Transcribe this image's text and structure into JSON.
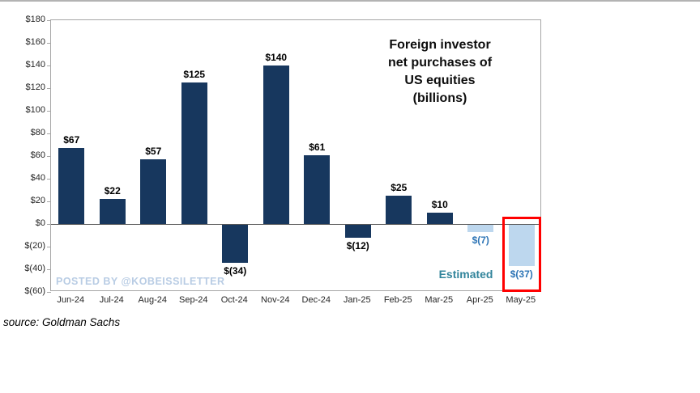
{
  "title_lines": [
    "Foreign investor",
    "net purchases of",
    "US equities",
    "(billions)"
  ],
  "watermark": "POSTED BY @KOBEISSILETTER",
  "estimated_label": "Estimated",
  "source": "source: Goldman Sachs",
  "chart_data": {
    "type": "bar",
    "title": "Foreign investor net purchases of US equities (billions)",
    "xlabel": "",
    "ylabel": "",
    "categories": [
      "Jun-24",
      "Jul-24",
      "Aug-24",
      "Sep-24",
      "Oct-24",
      "Nov-24",
      "Dec-24",
      "Jan-25",
      "Feb-25",
      "Mar-25",
      "Apr-25",
      "May-25"
    ],
    "values": [
      67,
      22,
      57,
      125,
      -34,
      140,
      61,
      -12,
      25,
      10,
      -7,
      -37
    ],
    "labels": [
      "$67",
      "$22",
      "$57",
      "$125",
      "$(34)",
      "$140",
      "$61",
      "$(12)",
      "$25",
      "$10",
      "$(7)",
      "$(37)"
    ],
    "estimated_indices": [
      10,
      11
    ],
    "highlighted_index": 11,
    "ylim": [
      -60,
      180
    ],
    "ytick_step": 20,
    "ytick_labels": [
      "$180",
      "$160",
      "$140",
      "$120",
      "$100",
      "$80",
      "$60",
      "$40",
      "$20",
      "$0",
      "$(20)",
      "$(40)",
      "$(60)"
    ],
    "grid": false,
    "legend": "none",
    "colors": {
      "bar": "#17375e",
      "estimated_bar": "#bdd7ee",
      "estimated_text": "#2e75b6",
      "estimated_word": "#31849b",
      "highlight_box": "#ff0000",
      "watermark": "#b8cce4"
    }
  }
}
